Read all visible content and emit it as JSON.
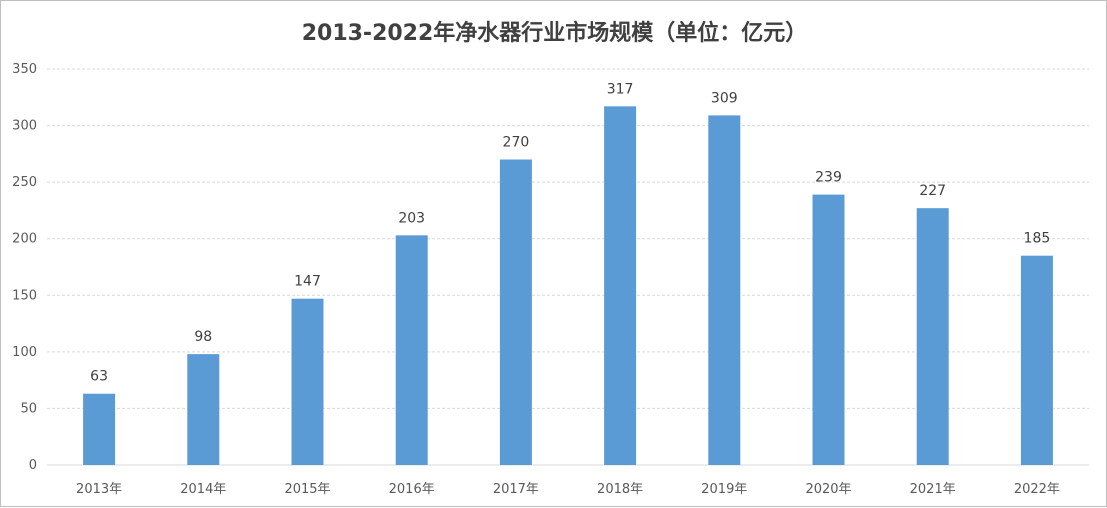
{
  "chart_data": {
    "type": "bar",
    "title": "2013-2022年净水器行业市场规模（单位：亿元）",
    "categories": [
      "2013年",
      "2014年",
      "2015年",
      "2016年",
      "2017年",
      "2018年",
      "2019年",
      "2020年",
      "2021年",
      "2022年"
    ],
    "values": [
      63,
      98,
      147,
      203,
      270,
      317,
      309,
      239,
      227,
      185
    ],
    "ylim": [
      0,
      350
    ],
    "yticks": [
      0,
      50,
      100,
      150,
      200,
      250,
      300,
      350
    ],
    "grid": true,
    "data_labels": true,
    "bar_color": "#5b9bd5",
    "grid_color": "#d9d9d9"
  }
}
